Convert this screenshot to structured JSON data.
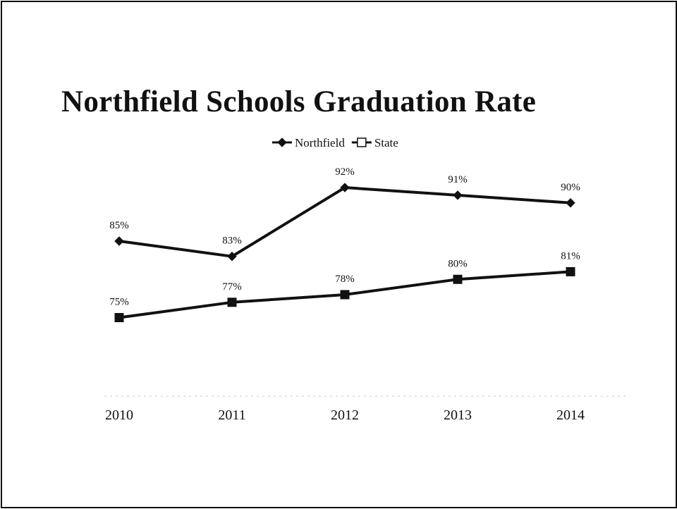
{
  "chart_data": {
    "type": "line",
    "title": "Northfield Schools Graduation Rate",
    "categories": [
      "2010",
      "2011",
      "2012",
      "2013",
      "2014"
    ],
    "series": [
      {
        "name": "Northfield",
        "marker": "diamond",
        "color": "#111111",
        "values": [
          85,
          83,
          92,
          91,
          90
        ],
        "labels": [
          "85%",
          "83%",
          "92%",
          "91%",
          "90%"
        ]
      },
      {
        "name": "State",
        "marker": "square",
        "color": "#111111",
        "values": [
          75,
          77,
          78,
          80,
          81
        ],
        "labels": [
          "75%",
          "77%",
          "78%",
          "80%",
          "81%"
        ]
      }
    ],
    "legend_position": "top-center",
    "grid": false,
    "y_axis_visible": false
  }
}
